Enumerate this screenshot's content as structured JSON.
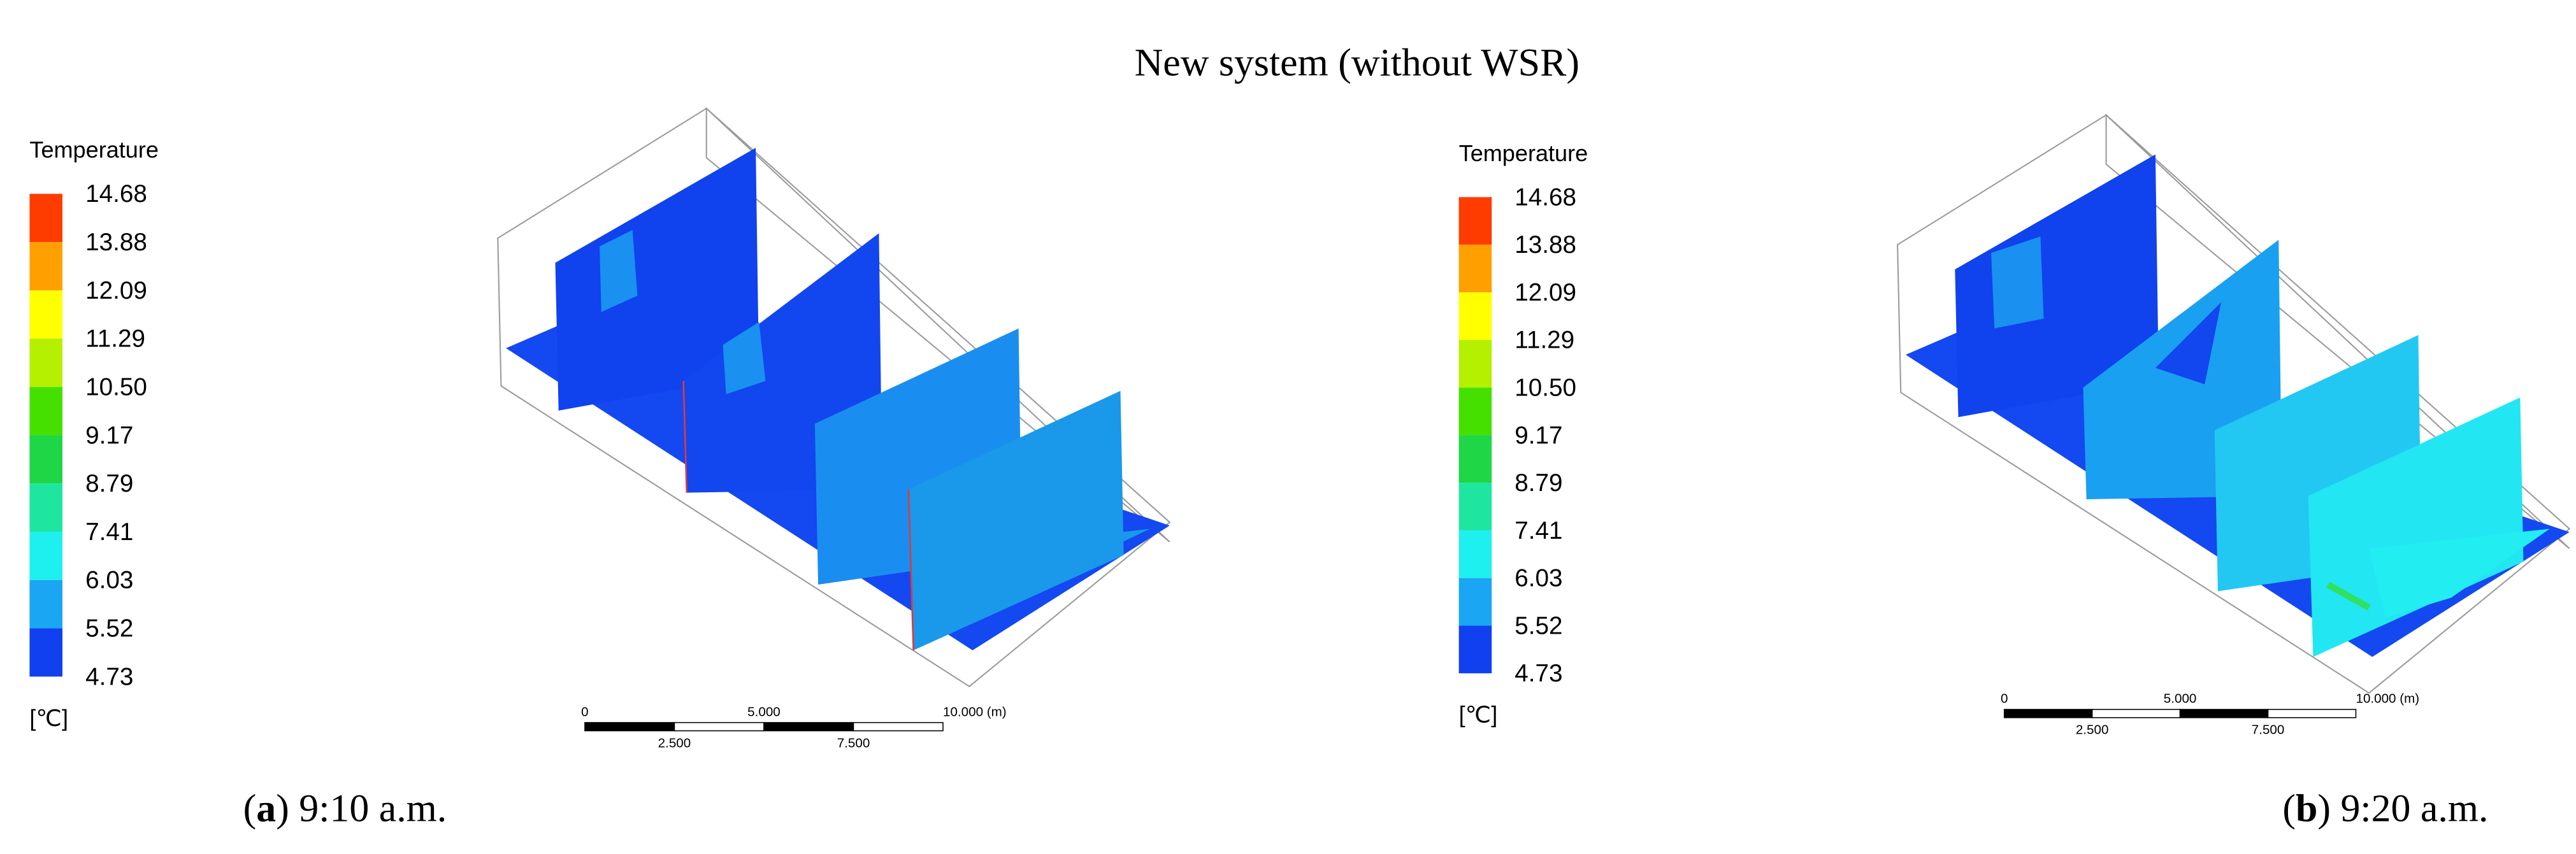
{
  "title": "New system (without WSR)",
  "panels": [
    {
      "legend": {
        "title": "Temperature",
        "labels": [
          "14.68",
          "13.88",
          "12.09",
          "11.29",
          "10.50",
          "9.17",
          "8.79",
          "7.41",
          "6.03",
          "5.52",
          "4.73"
        ],
        "colors": [
          "#ff3c00",
          "#ffa000",
          "#ffff00",
          "#b4f000",
          "#46e000",
          "#1ed646",
          "#1ee6a0",
          "#1ef0f0",
          "#1aa6f2",
          "#1040f0"
        ],
        "unit": "[℃]"
      },
      "scale_bar": {
        "top": [
          "0",
          "5.000",
          "10.000 (m)"
        ],
        "bottom": [
          "2.500",
          "7.500"
        ]
      },
      "caption": [
        "(",
        "a",
        ") 9:10 a.m."
      ]
    },
    {
      "legend": {
        "title": "Temperature",
        "labels": [
          "14.68",
          "13.88",
          "12.09",
          "11.29",
          "10.50",
          "9.17",
          "8.79",
          "7.41",
          "6.03",
          "5.52",
          "4.73"
        ],
        "colors": [
          "#ff3c00",
          "#ffa000",
          "#ffff00",
          "#b4f000",
          "#46e000",
          "#1ed646",
          "#1ee6a0",
          "#1ef0f0",
          "#1aa6f2",
          "#1040f0"
        ],
        "unit": "[℃]"
      },
      "scale_bar": {
        "top": [
          "0",
          "5.000",
          "10.000 (m)"
        ],
        "bottom": [
          "2.500",
          "7.500"
        ]
      },
      "caption": [
        "(",
        "b",
        ") 9:20 a.m."
      ]
    }
  ]
}
